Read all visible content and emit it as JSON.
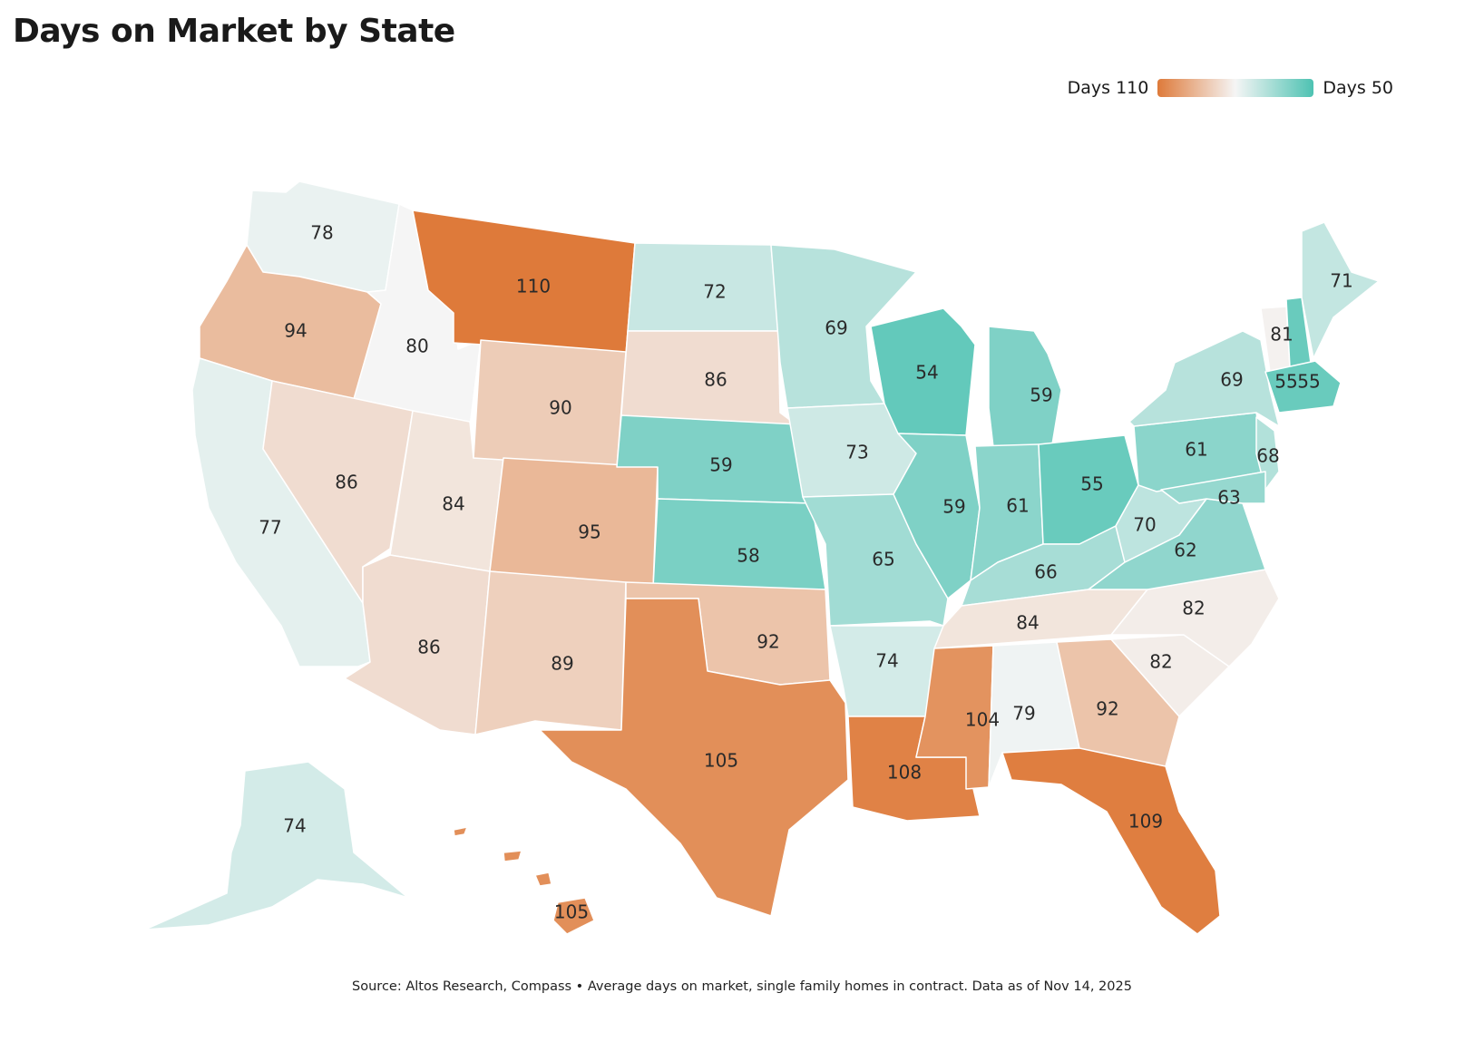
{
  "title": "Days on Market by State",
  "legend": {
    "low_label": "Days 110",
    "high_label": "Days 50",
    "min_value": 50,
    "max_value": 110,
    "color_high_days": "#DE7A3A",
    "color_mid": "#F5F5F5",
    "color_low_days": "#4DC2B2"
  },
  "source": "Source: Altos Research, Compass • Average days on market, single family homes in contract. Data as of Nov 14, 2025",
  "states": [
    {
      "id": "WA",
      "days": 78
    },
    {
      "id": "OR",
      "days": 94
    },
    {
      "id": "CA",
      "days": 77
    },
    {
      "id": "ID",
      "days": 80
    },
    {
      "id": "NV",
      "days": 86
    },
    {
      "id": "UT",
      "days": 84
    },
    {
      "id": "AZ",
      "days": 86
    },
    {
      "id": "MT",
      "days": 110
    },
    {
      "id": "WY",
      "days": 90
    },
    {
      "id": "CO",
      "days": 95
    },
    {
      "id": "NM",
      "days": 89
    },
    {
      "id": "ND",
      "days": 72
    },
    {
      "id": "SD",
      "days": 86
    },
    {
      "id": "NE",
      "days": 59
    },
    {
      "id": "KS",
      "days": 58
    },
    {
      "id": "OK",
      "days": 92
    },
    {
      "id": "TX",
      "days": 105
    },
    {
      "id": "MN",
      "days": 69
    },
    {
      "id": "IA",
      "days": 73
    },
    {
      "id": "MO",
      "days": 65
    },
    {
      "id": "AR",
      "days": 74
    },
    {
      "id": "LA",
      "days": 108
    },
    {
      "id": "WI",
      "days": 54
    },
    {
      "id": "IL",
      "days": 59
    },
    {
      "id": "MI",
      "days": 59
    },
    {
      "id": "IN",
      "days": 61
    },
    {
      "id": "OH",
      "days": 55
    },
    {
      "id": "KY",
      "days": 66
    },
    {
      "id": "TN",
      "days": 84
    },
    {
      "id": "MS",
      "days": 104
    },
    {
      "id": "AL",
      "days": 79
    },
    {
      "id": "GA",
      "days": 92
    },
    {
      "id": "FL",
      "days": 109
    },
    {
      "id": "SC",
      "days": 82
    },
    {
      "id": "NC",
      "days": 82
    },
    {
      "id": "VA",
      "days": 62
    },
    {
      "id": "WV",
      "days": 70
    },
    {
      "id": "PA",
      "days": 61
    },
    {
      "id": "NY",
      "days": 69
    },
    {
      "id": "NJ",
      "days": 68
    },
    {
      "id": "MD",
      "days": 63
    },
    {
      "id": "VT",
      "days": 81
    },
    {
      "id": "NH",
      "days": 55
    },
    {
      "id": "ME",
      "days": 71
    },
    {
      "id": "MA",
      "days": 55
    },
    {
      "id": "AK",
      "days": 74
    },
    {
      "id": "HI",
      "days": 105
    }
  ]
}
